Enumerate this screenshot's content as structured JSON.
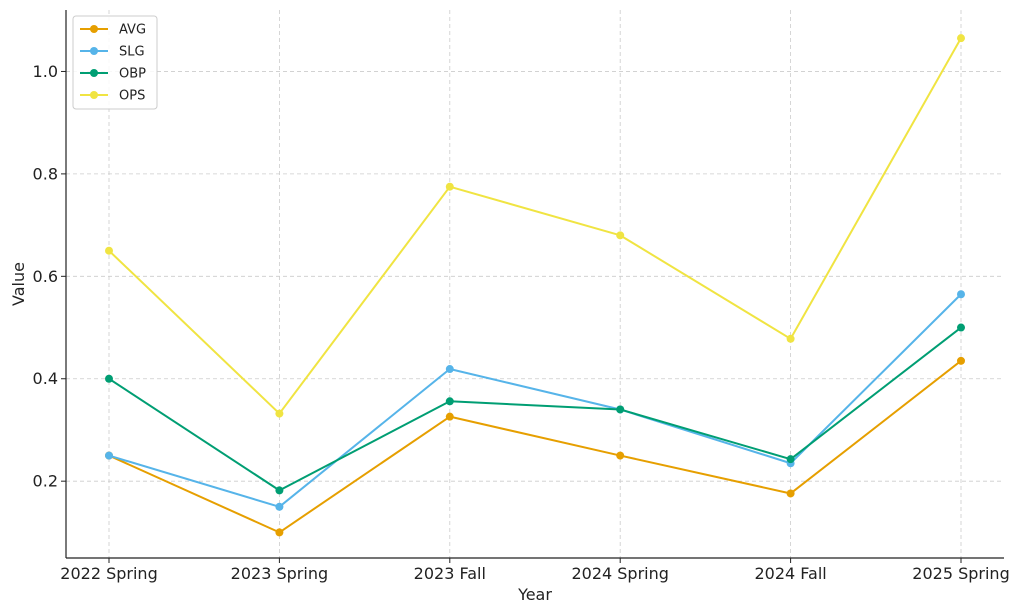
{
  "chart_data": {
    "type": "line",
    "title": "",
    "xlabel": "Year",
    "ylabel": "Value",
    "categories": [
      "2022 Spring",
      "2023 Spring",
      "2023 Fall",
      "2024 Spring",
      "2024 Fall",
      "2025 Spring"
    ],
    "ylim": [
      0.05,
      1.12
    ],
    "yticks": [
      "0.2",
      "0.4",
      "0.6",
      "0.8",
      "1.0"
    ],
    "grid": true,
    "legend_position": "top-left",
    "series": [
      {
        "name": "AVG",
        "color": "#E69F00",
        "values": [
          0.25,
          0.1,
          0.326,
          0.25,
          0.176,
          0.435
        ]
      },
      {
        "name": "SLG",
        "color": "#56B4E9",
        "values": [
          0.25,
          0.15,
          0.419,
          0.34,
          0.235,
          0.565
        ]
      },
      {
        "name": "OBP",
        "color": "#009E73",
        "values": [
          0.4,
          0.182,
          0.356,
          0.34,
          0.243,
          0.5
        ]
      },
      {
        "name": "OPS",
        "color": "#F0E442",
        "values": [
          0.65,
          0.332,
          0.775,
          0.68,
          0.478,
          1.065
        ]
      }
    ]
  }
}
